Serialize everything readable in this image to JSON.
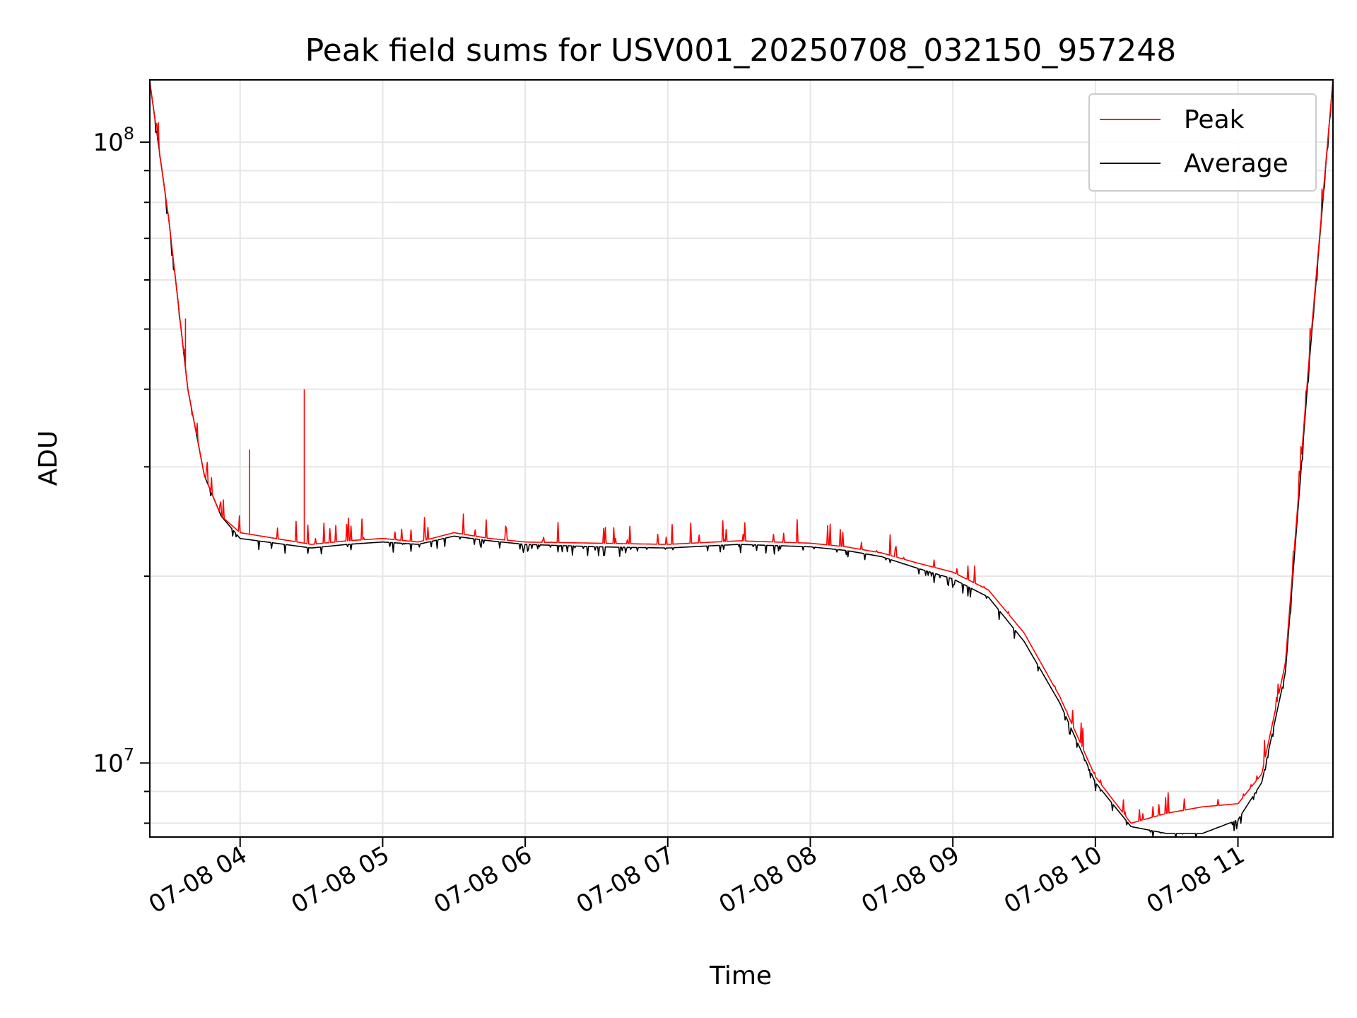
{
  "chart_data": {
    "type": "line",
    "title": "Peak field sums for USV001_20250708_032150_957248",
    "xlabel": "Time",
    "ylabel": "ADU",
    "y_scale": "log",
    "ylim": [
      7600000,
      126000000
    ],
    "xlim": [
      "2025-07-08 03:22",
      "2025-07-08 11:40"
    ],
    "x_ticks": [
      "07-08 04",
      "07-08 05",
      "07-08 06",
      "07-08 07",
      "07-08 08",
      "07-08 09",
      "07-08 10",
      "07-08 11"
    ],
    "y_ticks": [
      {
        "value": 10000000,
        "base": "10",
        "exp": "7"
      },
      {
        "value": 100000000,
        "base": "10",
        "exp": "8"
      }
    ],
    "grid": true,
    "legend_position": "top-right",
    "colors": {
      "Peak": "#ff0000",
      "Average": "#000000"
    },
    "series": [
      {
        "name": "Peak",
        "x": [
          "2025-07-08 03:22",
          "2025-07-08 03:30",
          "2025-07-08 03:38",
          "2025-07-08 03:45",
          "2025-07-08 03:52",
          "2025-07-08 04:00",
          "2025-07-08 04:15",
          "2025-07-08 04:30",
          "2025-07-08 04:45",
          "2025-07-08 05:00",
          "2025-07-08 05:15",
          "2025-07-08 05:30",
          "2025-07-08 05:45",
          "2025-07-08 06:00",
          "2025-07-08 06:30",
          "2025-07-08 07:00",
          "2025-07-08 07:30",
          "2025-07-08 08:00",
          "2025-07-08 08:15",
          "2025-07-08 08:30",
          "2025-07-08 08:45",
          "2025-07-08 09:00",
          "2025-07-08 09:15",
          "2025-07-08 09:30",
          "2025-07-08 09:45",
          "2025-07-08 10:00",
          "2025-07-08 10:15",
          "2025-07-08 10:30",
          "2025-07-08 10:45",
          "2025-07-08 11:00",
          "2025-07-08 11:10",
          "2025-07-08 11:20",
          "2025-07-08 11:30",
          "2025-07-08 11:40"
        ],
        "y": [
          125000000,
          75000000,
          40000000,
          29000000,
          25000000,
          23500000,
          23000000,
          22500000,
          22800000,
          23000000,
          22700000,
          23500000,
          23000000,
          22700000,
          22600000,
          22500000,
          22800000,
          22600000,
          22300000,
          21800000,
          21000000,
          20300000,
          19000000,
          16200000,
          12800000,
          9500000,
          8000000,
          8300000,
          8500000,
          8600000,
          9600000,
          14500000,
          45000000,
          126000000
        ]
      },
      {
        "name": "Average",
        "x": [
          "2025-07-08 03:22",
          "2025-07-08 03:30",
          "2025-07-08 03:38",
          "2025-07-08 03:45",
          "2025-07-08 03:52",
          "2025-07-08 04:00",
          "2025-07-08 04:15",
          "2025-07-08 04:30",
          "2025-07-08 04:45",
          "2025-07-08 05:00",
          "2025-07-08 05:15",
          "2025-07-08 05:30",
          "2025-07-08 05:45",
          "2025-07-08 06:00",
          "2025-07-08 06:30",
          "2025-07-08 07:00",
          "2025-07-08 07:30",
          "2025-07-08 08:00",
          "2025-07-08 08:15",
          "2025-07-08 08:30",
          "2025-07-08 08:45",
          "2025-07-08 09:00",
          "2025-07-08 09:15",
          "2025-07-08 09:30",
          "2025-07-08 09:45",
          "2025-07-08 10:00",
          "2025-07-08 10:15",
          "2025-07-08 10:30",
          "2025-07-08 10:45",
          "2025-07-08 11:00",
          "2025-07-08 11:10",
          "2025-07-08 11:20",
          "2025-07-08 11:30",
          "2025-07-08 11:40"
        ],
        "y": [
          125000000,
          75000000,
          40000000,
          29000000,
          25000000,
          23000000,
          22600000,
          22200000,
          22500000,
          22700000,
          22500000,
          23200000,
          22800000,
          22500000,
          22300000,
          22200000,
          22500000,
          22300000,
          22000000,
          21500000,
          20600000,
          19800000,
          18500000,
          15700000,
          12500000,
          9300000,
          7900000,
          7700000,
          7700000,
          8100000,
          9300000,
          14000000,
          44000000,
          126000000
        ]
      }
    ]
  }
}
